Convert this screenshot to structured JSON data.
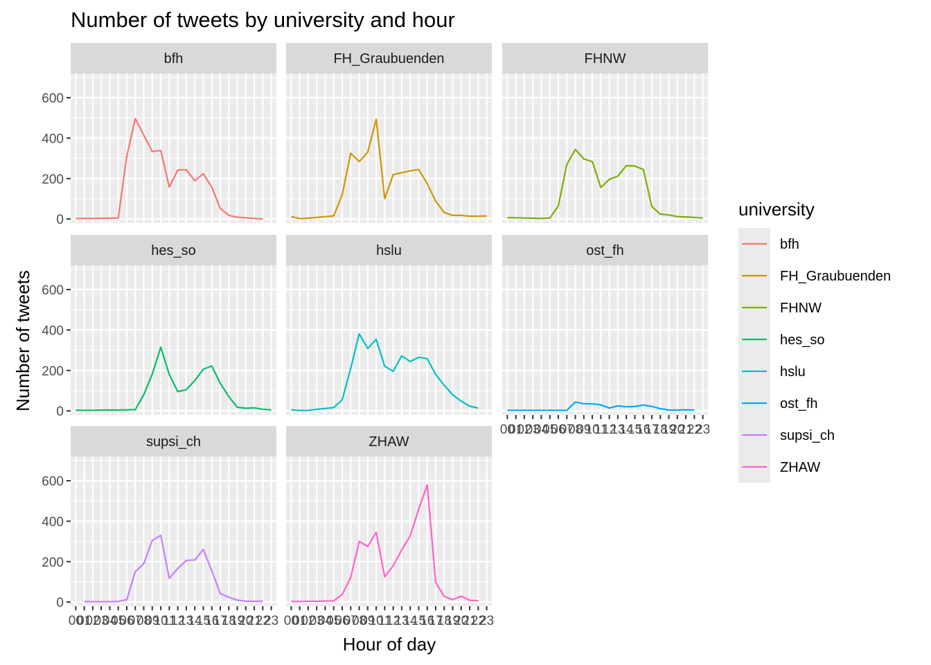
{
  "chart_data": {
    "type": "line",
    "title": "Number of tweets by university and hour",
    "xlabel": "Hour of day",
    "ylabel": "Number of tweets",
    "x": [
      "00",
      "01",
      "02",
      "03",
      "04",
      "05",
      "06",
      "07",
      "08",
      "09",
      "10",
      "11",
      "12",
      "13",
      "14",
      "15",
      "16",
      "17",
      "18",
      "19",
      "20",
      "21",
      "22",
      "23"
    ],
    "ylim": [
      -20,
      720
    ],
    "yticks": [
      0,
      200,
      400,
      600
    ],
    "grid": true,
    "facet_layout": "3 columns x 3 rows",
    "legend": {
      "title": "university",
      "position": "right"
    },
    "series": [
      {
        "name": "bfh",
        "color": "#F8766D",
        "values": [
          2,
          3,
          3,
          4,
          4,
          5,
          310,
          497,
          415,
          333,
          339,
          158,
          242,
          244,
          189,
          224,
          157,
          52,
          18,
          9,
          6,
          3,
          0,
          null
        ]
      },
      {
        "name": "FH_Graubuenden",
        "color": "#CD9600",
        "values": [
          12,
          2,
          4,
          8,
          12,
          15,
          120,
          325,
          284,
          330,
          493,
          101,
          220,
          229,
          238,
          245,
          175,
          88,
          32,
          18,
          18,
          14,
          14,
          15
        ]
      },
      {
        "name": "FHNW",
        "color": "#7CAE00",
        "values": [
          7,
          6,
          5,
          4,
          3,
          5,
          65,
          270,
          344,
          297,
          284,
          156,
          196,
          212,
          264,
          262,
          245,
          62,
          24,
          20,
          12,
          10,
          8,
          5
        ]
      },
      {
        "name": "hes_so",
        "color": "#00BE67",
        "values": [
          3,
          3,
          3,
          4,
          4,
          4,
          5,
          6,
          80,
          182,
          315,
          180,
          95,
          105,
          150,
          206,
          222,
          136,
          71,
          18,
          13,
          15,
          8,
          5
        ]
      },
      {
        "name": "hslu",
        "color": "#00BFC4",
        "values": [
          5,
          2,
          2,
          8,
          12,
          16,
          55,
          210,
          381,
          309,
          354,
          221,
          195,
          272,
          244,
          265,
          258,
          180,
          127,
          79,
          48,
          23,
          14,
          null
        ]
      },
      {
        "name": "ost_fh",
        "color": "#00A9FF",
        "values": [
          3,
          3,
          3,
          3,
          3,
          3,
          3,
          3,
          44,
          35,
          35,
          30,
          14,
          25,
          20,
          22,
          29,
          22,
          11,
          4,
          4,
          5,
          4,
          null
        ]
      },
      {
        "name": "supsi_ch",
        "color": "#C77CFF",
        "values": [
          null,
          2,
          2,
          2,
          2,
          3,
          12,
          150,
          190,
          305,
          330,
          118,
          166,
          206,
          208,
          260,
          155,
          42,
          24,
          10,
          4,
          4,
          4,
          null
        ]
      },
      {
        "name": "ZHAW",
        "color": "#FF61CC",
        "values": [
          3,
          3,
          4,
          4,
          5,
          6,
          37,
          122,
          300,
          275,
          345,
          125,
          180,
          258,
          327,
          460,
          579,
          97,
          28,
          12,
          29,
          9,
          7,
          null
        ]
      }
    ]
  }
}
